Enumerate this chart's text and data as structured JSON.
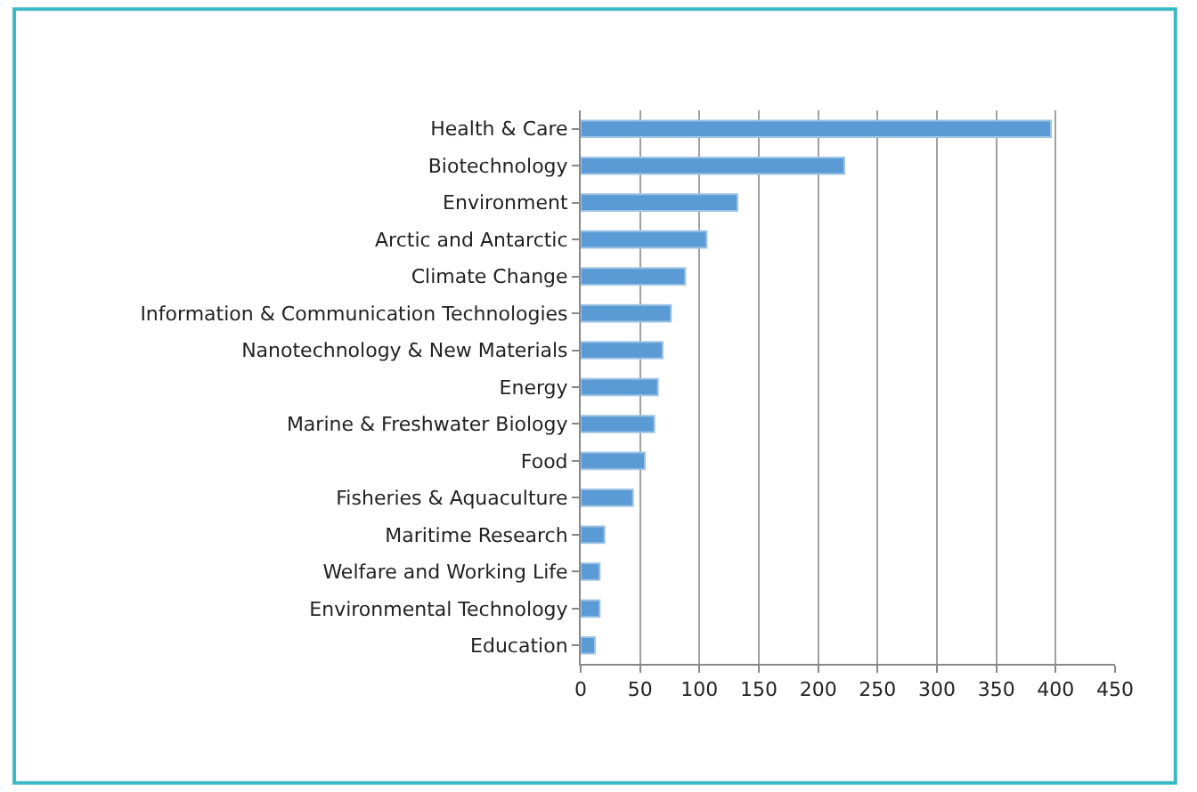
{
  "chart_data": {
    "type": "bar",
    "orientation": "horizontal",
    "categories": [
      "Health & Care",
      "Biotechnology",
      "Environment",
      "Arctic and Antarctic",
      "Climate Change",
      "Information & Communication Technologies",
      "Nanotechnology & New Materials",
      "Energy",
      "Marine & Freshwater Biology",
      "Food",
      "Fisheries & Aquaculture",
      "Maritime Research",
      "Welfare and Working Life",
      "Environmental Technology",
      "Education"
    ],
    "values": [
      396,
      222,
      132,
      106,
      88,
      76,
      69,
      65,
      62,
      54,
      44,
      20,
      16,
      16,
      12
    ],
    "color": "#5b9bd5",
    "xlim": [
      0,
      450
    ],
    "xticks": [
      0,
      50,
      100,
      150,
      200,
      250,
      300,
      350,
      400,
      450
    ],
    "grid": "x"
  }
}
